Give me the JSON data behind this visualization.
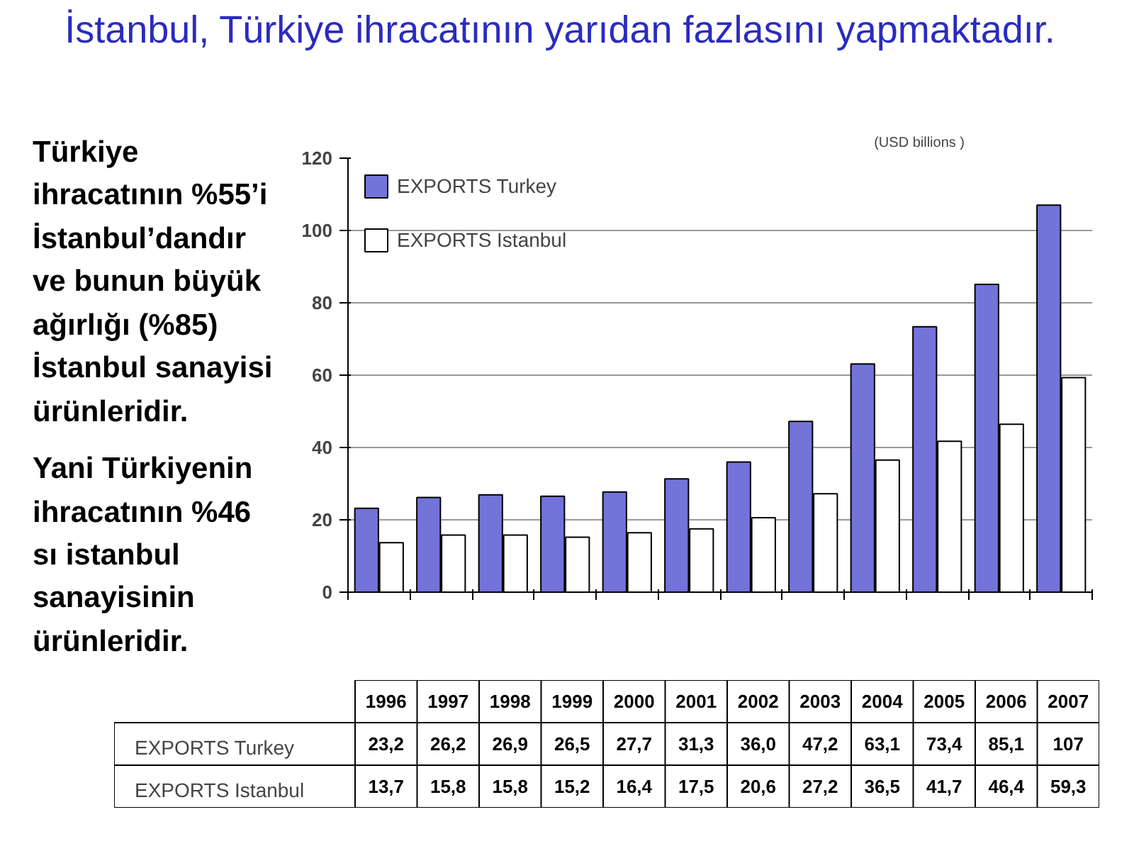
{
  "chart_data": {
    "type": "bar",
    "title": "İstanbul, Türkiye ihracatının yarıdan fazlasını yapmaktadır.",
    "annotations": [
      "Türkiye ihracatının %55’i İstanbul’dandır ve bunun büyük ağırlığı (%85) İstanbul sanayisi ürünleridir.",
      "Yani Türkiyenin ihracatının %46 sı istanbul sanayisinin ürünleridir.",
      "(USD billions )"
    ],
    "categories": [
      "1996",
      "1997",
      "1998",
      "1999",
      "2000",
      "2001",
      "2002",
      "2003",
      "2004",
      "2005",
      "2006",
      "2007"
    ],
    "series": [
      {
        "name": "EXPORTS Turkey",
        "color": "#7373d9",
        "values": [
          23.2,
          26.2,
          26.9,
          26.5,
          27.7,
          31.3,
          36.0,
          47.2,
          63.1,
          73.4,
          85.1,
          107
        ],
        "value_labels": [
          "23,2",
          "26,2",
          "26,9",
          "26,5",
          "27,7",
          "31,3",
          "36,0",
          "47,2",
          "63,1",
          "73,4",
          "85,1",
          "107"
        ]
      },
      {
        "name": "EXPORTS Istanbul",
        "color": "#ffffff",
        "values": [
          13.7,
          15.8,
          15.8,
          15.2,
          16.4,
          17.5,
          20.6,
          27.2,
          36.5,
          41.7,
          46.4,
          59.3
        ],
        "value_labels": [
          "13,7",
          "15,8",
          "15,8",
          "15,2",
          "16,4",
          "17,5",
          "20,6",
          "27,2",
          "36,5",
          "41,7",
          "46,4",
          "59,3"
        ]
      }
    ],
    "ylim": [
      0,
      120
    ],
    "yticks": [
      0,
      20,
      40,
      60,
      80,
      100,
      120
    ],
    "grid": "y",
    "legend": "top left"
  }
}
